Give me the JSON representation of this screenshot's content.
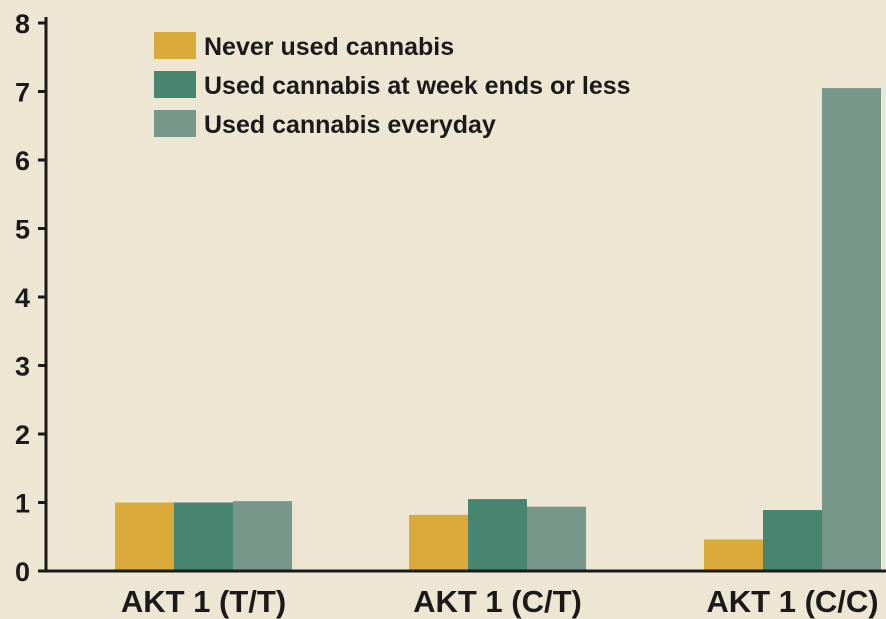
{
  "chart_data": {
    "type": "bar",
    "title": "",
    "xlabel": "",
    "ylabel": "",
    "ylim": [
      0,
      8
    ],
    "yticks": [
      0,
      1,
      2,
      3,
      4,
      5,
      6,
      7,
      8
    ],
    "grid": false,
    "legend_position": "top-left",
    "categories": [
      "AKT 1 (T/T)",
      "AKT 1 (C/T)",
      "AKT 1 (C/C)"
    ],
    "series": [
      {
        "name": "Never used cannabis",
        "color": "#d9a93a",
        "values": [
          1.0,
          0.82,
          0.46
        ]
      },
      {
        "name": "Used cannabis at week ends or less",
        "color": "#478571",
        "values": [
          1.0,
          1.05,
          0.89
        ]
      },
      {
        "name": "Used cannabis everyday",
        "color": "#77978a",
        "values": [
          1.02,
          0.94,
          7.05
        ]
      }
    ]
  }
}
